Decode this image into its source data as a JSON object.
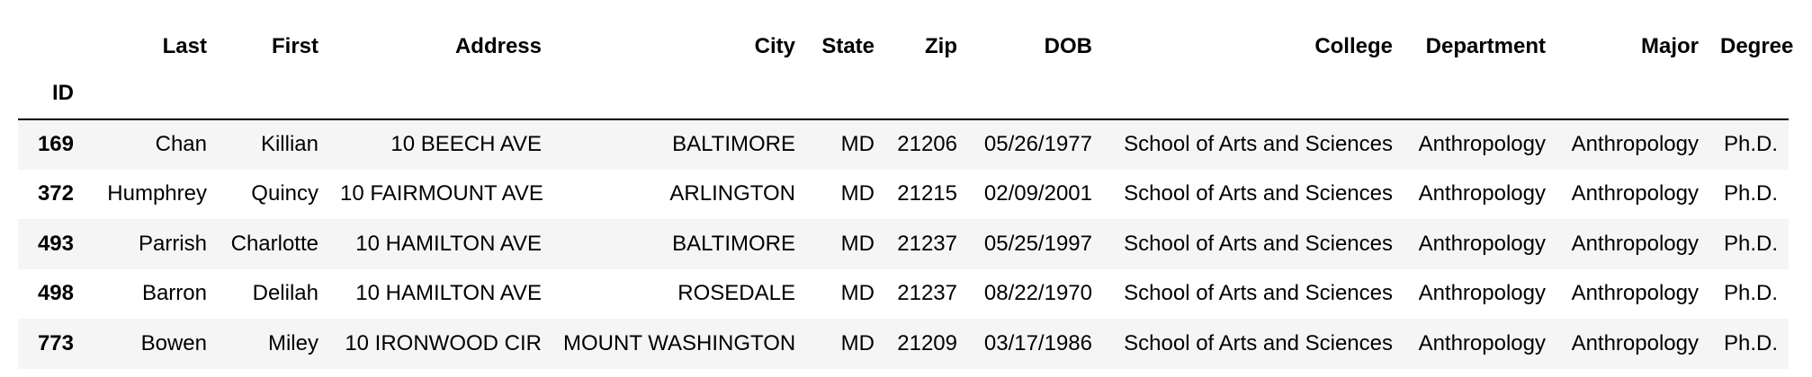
{
  "table": {
    "columns": [
      "Last",
      "First",
      "Address",
      "City",
      "State",
      "Zip",
      "DOB",
      "College",
      "Department",
      "Major",
      "Degree"
    ],
    "index_name": "ID",
    "rows": [
      {
        "id": "169",
        "cells": [
          "Chan",
          "Killian",
          "10 BEECH AVE",
          "BALTIMORE",
          "MD",
          "21206",
          "05/26/1977",
          "School of Arts and Sciences",
          "Anthropology",
          "Anthropology",
          "Ph.D."
        ]
      },
      {
        "id": "372",
        "cells": [
          "Humphrey",
          "Quincy",
          "10 FAIRMOUNT AVE",
          "ARLINGTON",
          "MD",
          "21215",
          "02/09/2001",
          "School of Arts and Sciences",
          "Anthropology",
          "Anthropology",
          "Ph.D."
        ]
      },
      {
        "id": "493",
        "cells": [
          "Parrish",
          "Charlotte",
          "10 HAMILTON AVE",
          "BALTIMORE",
          "MD",
          "21237",
          "05/25/1997",
          "School of Arts and Sciences",
          "Anthropology",
          "Anthropology",
          "Ph.D."
        ]
      },
      {
        "id": "498",
        "cells": [
          "Barron",
          "Delilah",
          "10 HAMILTON AVE",
          "ROSEDALE",
          "MD",
          "21237",
          "08/22/1970",
          "School of Arts and Sciences",
          "Anthropology",
          "Anthropology",
          "Ph.D."
        ]
      },
      {
        "id": "773",
        "cells": [
          "Bowen",
          "Miley",
          "10 IRONWOOD CIR",
          "MOUNT WASHINGTON",
          "MD",
          "21209",
          "03/17/1986",
          "School of Arts and Sciences",
          "Anthropology",
          "Anthropology",
          "Ph.D."
        ]
      }
    ]
  },
  "colors": {
    "text": "#000000",
    "row_stripe": "#f5f5f5",
    "background": "#ffffff",
    "header_rule": "#000000"
  }
}
